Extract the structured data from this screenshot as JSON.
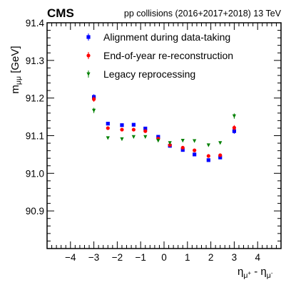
{
  "header": {
    "experiment": "CMS",
    "energy": "pp collisions (2016+2017+2018) 13 TeV"
  },
  "axes": {
    "ylabel": {
      "main": "m",
      "sub": "μμ",
      "unit": " [GeV]"
    },
    "xlabel": {
      "eta1": "η",
      "mu1": "μ",
      "sign1": "+",
      "minus": " - ",
      "eta2": "η",
      "mu2": "μ",
      "sign2": "-"
    }
  },
  "chart_data": {
    "type": "scatter",
    "xlim": [
      -5,
      5
    ],
    "ylim": [
      90.8,
      91.4
    ],
    "xticks": [
      -4,
      -3,
      -2,
      -1,
      0,
      1,
      2,
      3,
      4
    ],
    "yticks": [
      90.9,
      91.0,
      91.1,
      91.2,
      91.3,
      91.4
    ],
    "ytick_labels": [
      "90.9",
      "91.0",
      "91.1",
      "91.2",
      "91.3",
      "91.4"
    ],
    "x": [
      -3.0,
      -2.4,
      -1.8,
      -1.3,
      -0.8,
      -0.25,
      0.25,
      0.8,
      1.3,
      1.9,
      2.4,
      3.0
    ],
    "legend_position": "top",
    "series": [
      {
        "name": "Alignment during data-taking",
        "marker": "square",
        "color": "#0000ff",
        "values": [
          91.203,
          91.132,
          91.128,
          91.129,
          91.119,
          91.097,
          91.073,
          91.062,
          91.05,
          91.035,
          91.042,
          91.112
        ],
        "errors": [
          0.007,
          0.003,
          0.003,
          0.003,
          0.003,
          0.003,
          0.003,
          0.003,
          0.003,
          0.003,
          0.003,
          0.007
        ]
      },
      {
        "name": "End-of-year re-reconstruction",
        "marker": "circle",
        "color": "#ff0000",
        "values": [
          91.197,
          91.12,
          91.116,
          91.116,
          91.112,
          91.092,
          91.075,
          91.068,
          91.061,
          91.046,
          91.048,
          91.121
        ],
        "errors": [
          0.007,
          0.003,
          0.003,
          0.003,
          0.003,
          0.003,
          0.003,
          0.003,
          0.003,
          0.003,
          0.003,
          0.007
        ]
      },
      {
        "name": "Legacy reprocessing",
        "marker": "triangle-down",
        "color": "#008000",
        "values": [
          91.167,
          91.094,
          91.091,
          91.097,
          91.097,
          91.087,
          91.081,
          91.087,
          91.086,
          91.075,
          91.081,
          91.152
        ],
        "errors": [
          0.007,
          0.003,
          0.003,
          0.003,
          0.003,
          0.003,
          0.003,
          0.003,
          0.003,
          0.003,
          0.003,
          0.007
        ]
      }
    ]
  }
}
